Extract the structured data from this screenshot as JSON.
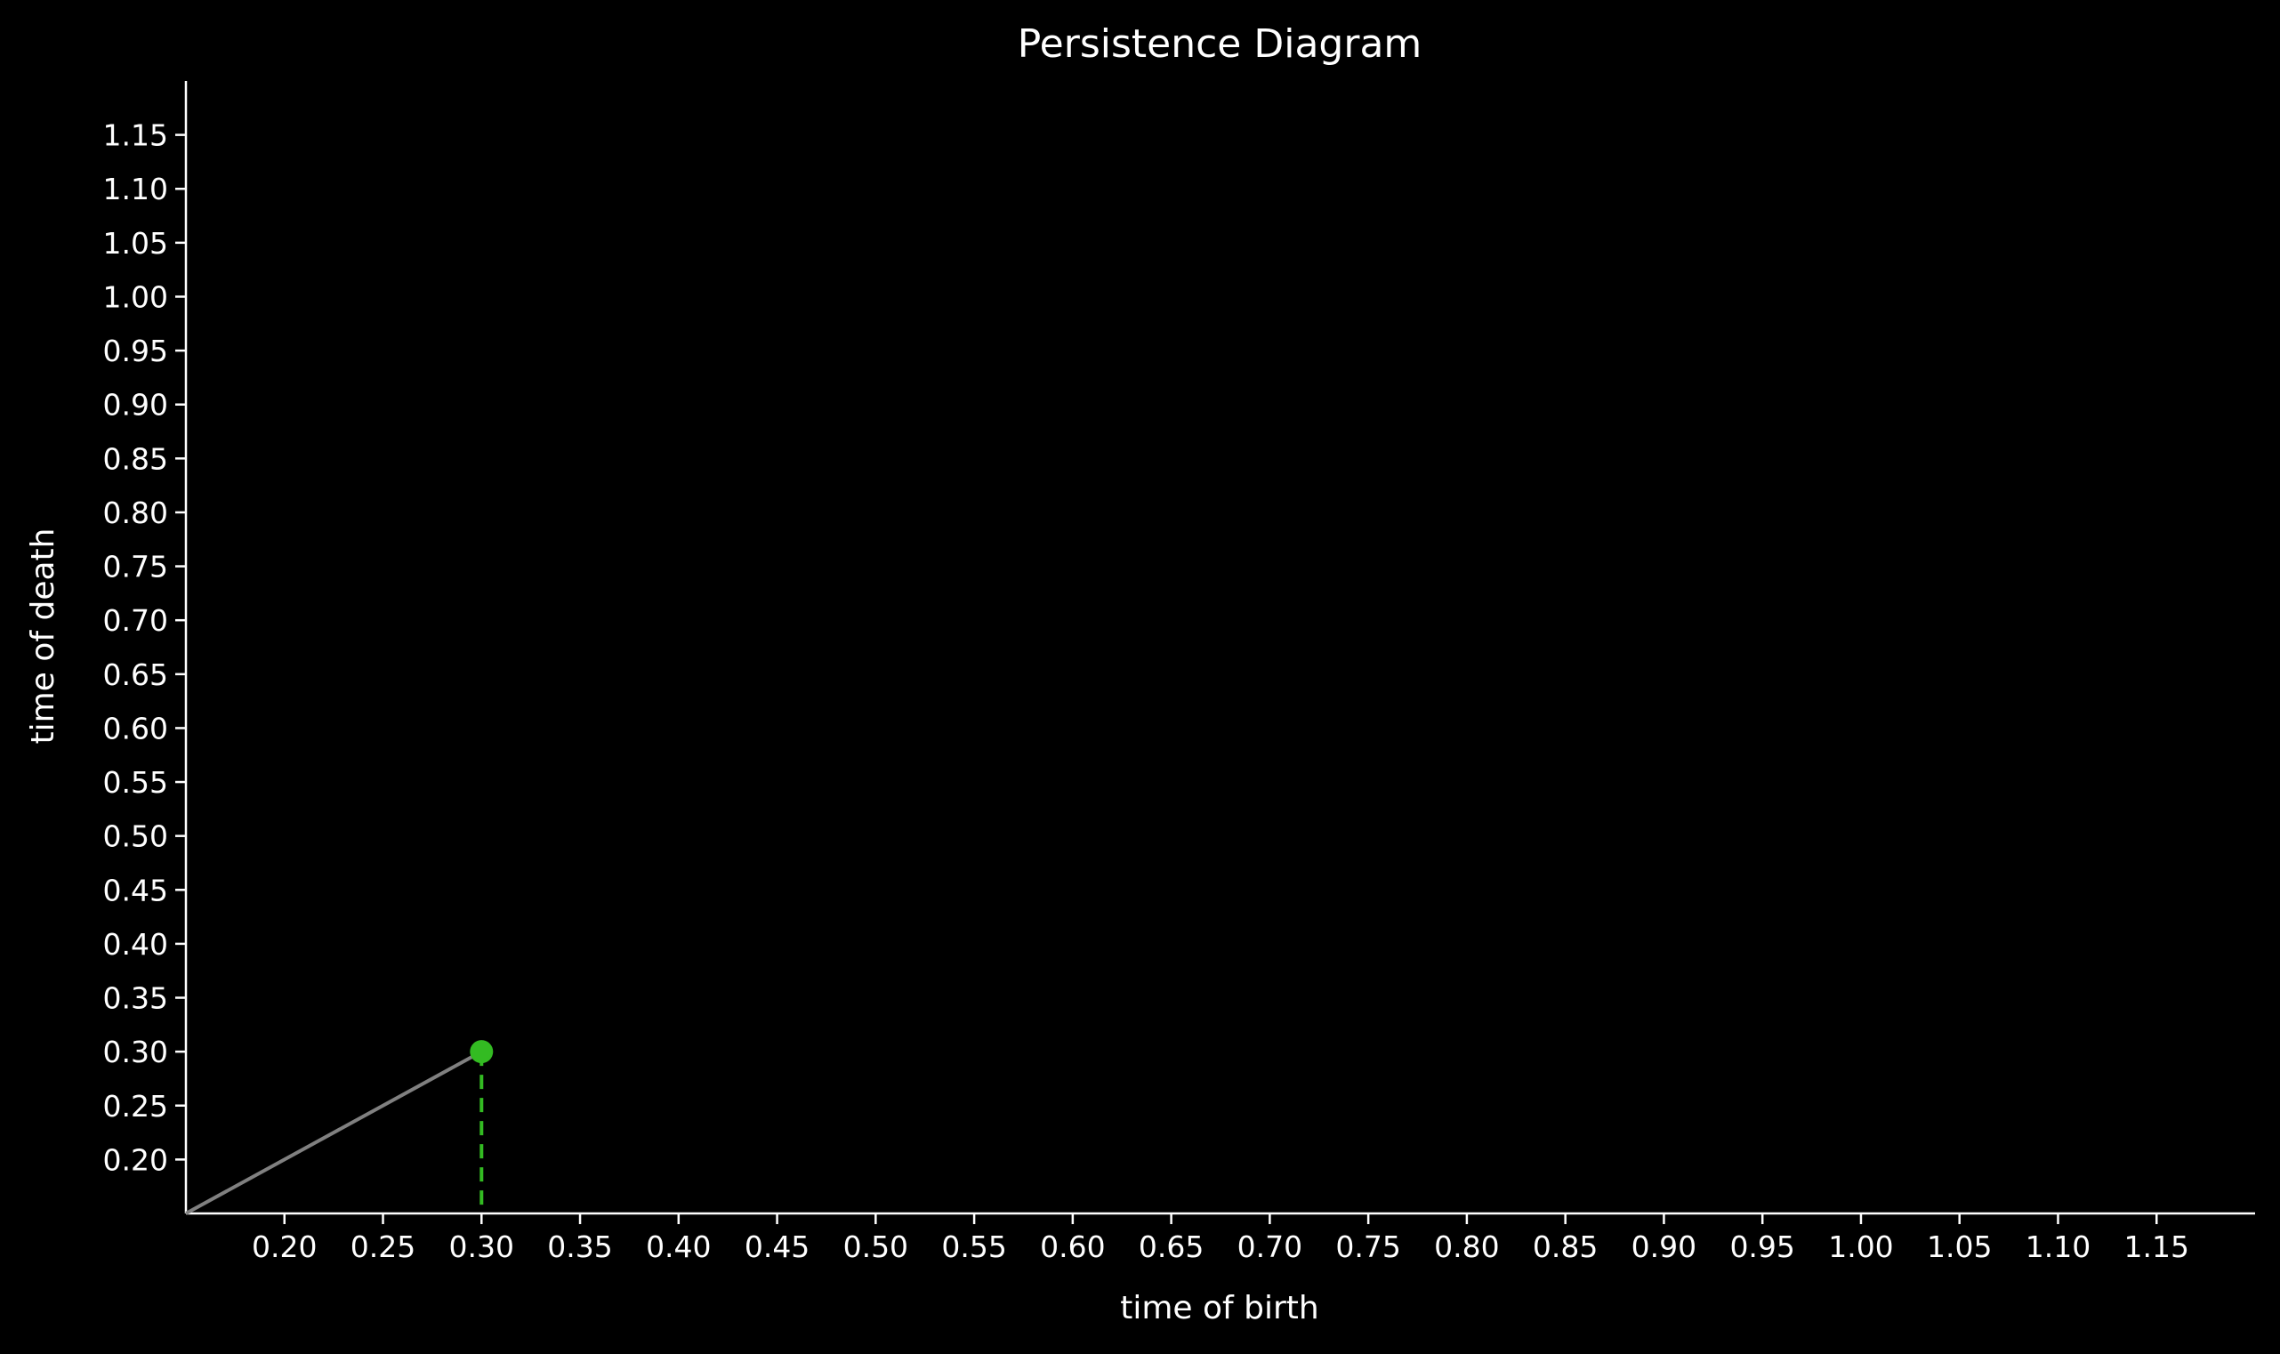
{
  "chart_data": {
    "type": "scatter",
    "title": "Persistence Diagram",
    "xlabel": "time of birth",
    "ylabel": "time of death",
    "xlim": [
      0.15,
      1.2
    ],
    "ylim": [
      0.15,
      1.2
    ],
    "xticks": [
      "0.20",
      "0.25",
      "0.30",
      "0.35",
      "0.40",
      "0.45",
      "0.50",
      "0.55",
      "0.60",
      "0.65",
      "0.70",
      "0.75",
      "0.80",
      "0.85",
      "0.90",
      "0.95",
      "1.00",
      "1.05",
      "1.10",
      "1.15"
    ],
    "yticks": [
      "0.20",
      "0.25",
      "0.30",
      "0.35",
      "0.40",
      "0.45",
      "0.50",
      "0.55",
      "0.60",
      "0.65",
      "0.70",
      "0.75",
      "0.80",
      "0.85",
      "0.90",
      "0.95",
      "1.00",
      "1.05",
      "1.10",
      "1.15"
    ],
    "diagonal": {
      "from": [
        0.15,
        0.15
      ],
      "to": [
        0.3,
        0.3
      ],
      "color": "#808080"
    },
    "points": [
      {
        "birth": 0.3,
        "death": 0.3,
        "color": "#33bb22"
      }
    ],
    "drop_line": {
      "x": 0.3,
      "from_y": 0.15,
      "to_y": 0.3,
      "color": "#33bb22",
      "style": "dashed"
    },
    "grid": false,
    "background": "#000000",
    "foreground": "#ffffff"
  }
}
